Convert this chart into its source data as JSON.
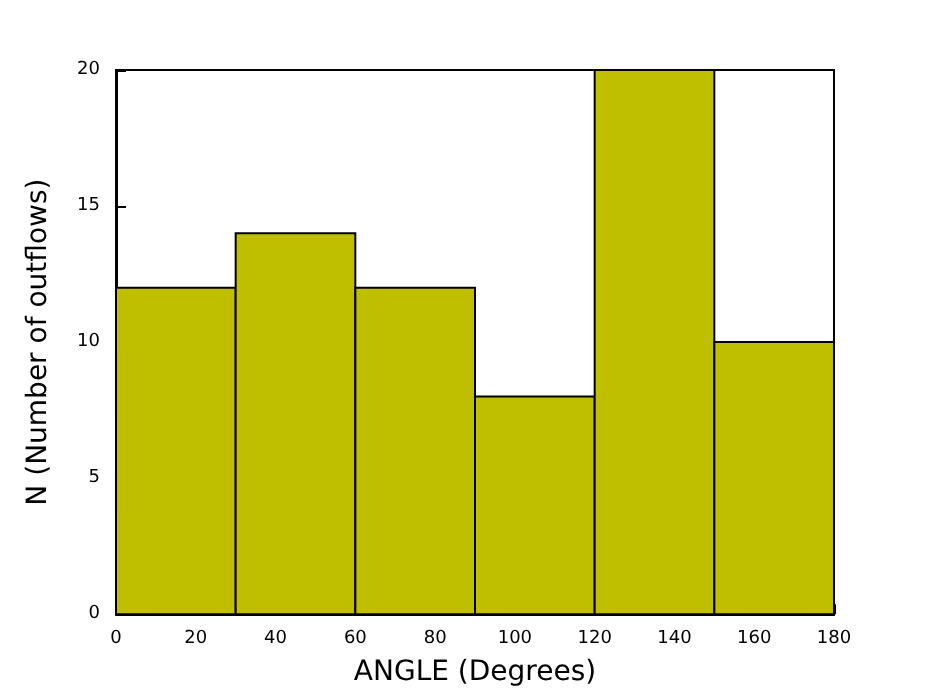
{
  "chart_data": {
    "type": "histogram",
    "xlabel": "ANGLE (Degrees)",
    "ylabel": "N (Number of outflows)",
    "bins": [
      0,
      30,
      60,
      90,
      120,
      150,
      180
    ],
    "values": [
      12,
      14,
      12,
      8,
      20,
      10
    ],
    "color": "#bfbf00",
    "xlim": [
      0,
      180
    ],
    "xticks": [
      0,
      20,
      40,
      60,
      80,
      100,
      120,
      140,
      160,
      180
    ],
    "ylim": [
      0,
      20
    ],
    "yticks": [
      0,
      5,
      10,
      15,
      20
    ],
    "grid": false
  }
}
